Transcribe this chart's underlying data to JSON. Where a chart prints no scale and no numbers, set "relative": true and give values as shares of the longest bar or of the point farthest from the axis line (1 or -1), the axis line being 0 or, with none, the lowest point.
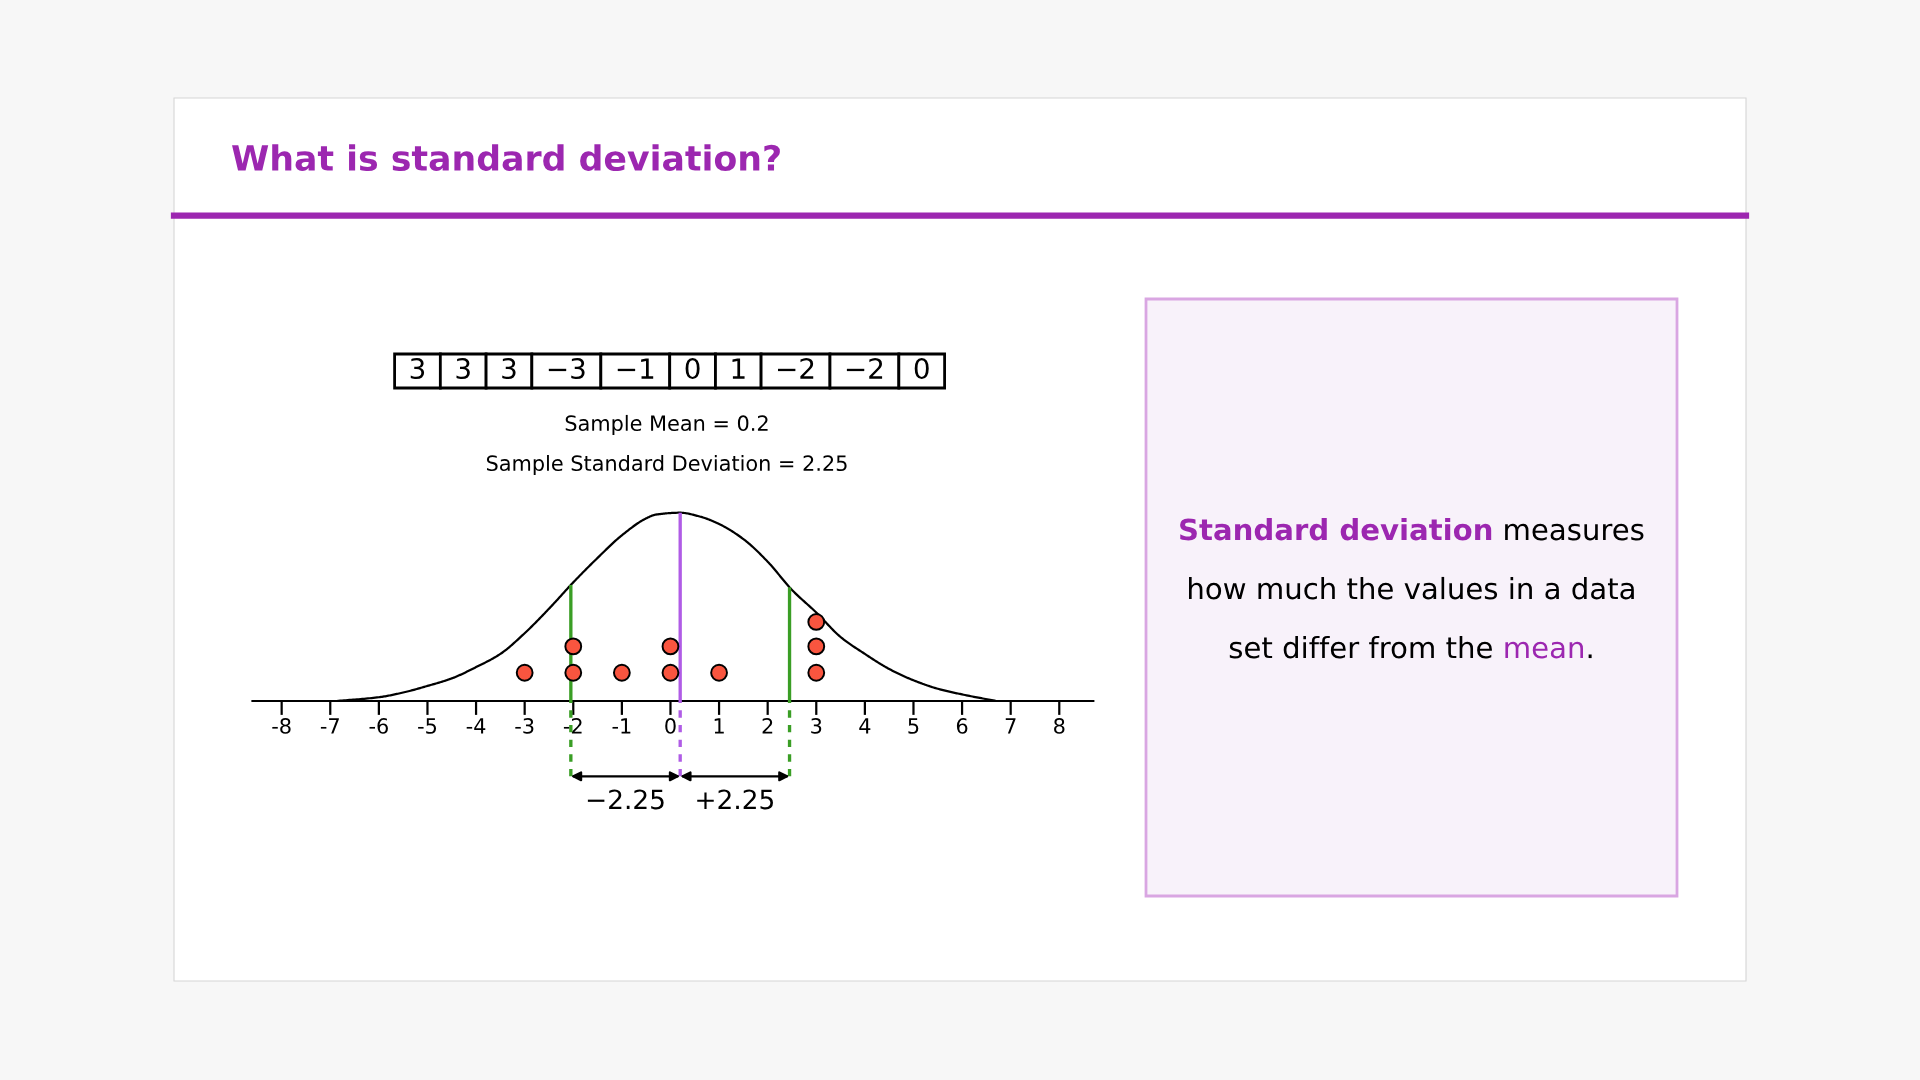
{
  "chart_data": [
    {
      "type": "scatter",
      "title": "What is standard deviation?",
      "relative": true,
      "xlim": [
        -8.6,
        8.7
      ],
      "xticks": [
        -8,
        -7,
        -6,
        -5,
        -4,
        -3,
        -2,
        -1,
        0,
        1,
        2,
        3,
        4,
        5,
        6,
        7,
        8
      ],
      "series": [
        {
          "type": "line",
          "color": "#000000",
          "x": [
            -6.87,
            -6,
            -5.5,
            -5,
            -4.5,
            -4,
            -3.5,
            -3,
            -2.5,
            -2,
            -1.5,
            -1,
            -0.5,
            -0.3,
            0.2,
            0.6,
            1,
            1.5,
            2,
            2.5,
            3,
            3.5,
            4,
            4.5,
            5,
            5.5,
            6,
            6.7
          ],
          "values": [
            0,
            0.02,
            0.045,
            0.08,
            0.12,
            0.18,
            0.25,
            0.36,
            0.49,
            0.63,
            0.76,
            0.88,
            0.97,
            0.99,
            1,
            0.98,
            0.94,
            0.86,
            0.74,
            0.59,
            0.47,
            0.34,
            0.25,
            0.17,
            0.11,
            0.065,
            0.035,
            0
          ]
        },
        {
          "type": "scatter",
          "color": "#f9553f",
          "x": [
            -3,
            -2,
            -2,
            -1,
            0,
            0,
            1,
            3,
            3,
            3
          ],
          "values": [
            0.15,
            0.15,
            0.29,
            0.15,
            0.15,
            0.29,
            0.15,
            0.15,
            0.29,
            0.42
          ]
        }
      ],
      "ref_lines": [
        {
          "axis": "x",
          "value": -2.05,
          "color": "#3a9e25"
        },
        {
          "axis": "x",
          "value": 0.2,
          "color": "#b05ce6"
        },
        {
          "axis": "x",
          "value": 2.45,
          "color": "#3a9e25"
        }
      ],
      "annotations": [
        "3",
        "3",
        "3",
        "−3",
        "−1",
        "0",
        "1",
        "−2",
        "−2",
        "0",
        "Sample Mean = 0.2",
        "Sample Standard Deviation = 2.25",
        "−2.25",
        "+2.25"
      ]
    },
    {
      "type": "other",
      "annotations": [
        "Standard deviation",
        " measures how much the values in a data set differ from the ",
        "mean",
        "."
      ]
    }
  ]
}
